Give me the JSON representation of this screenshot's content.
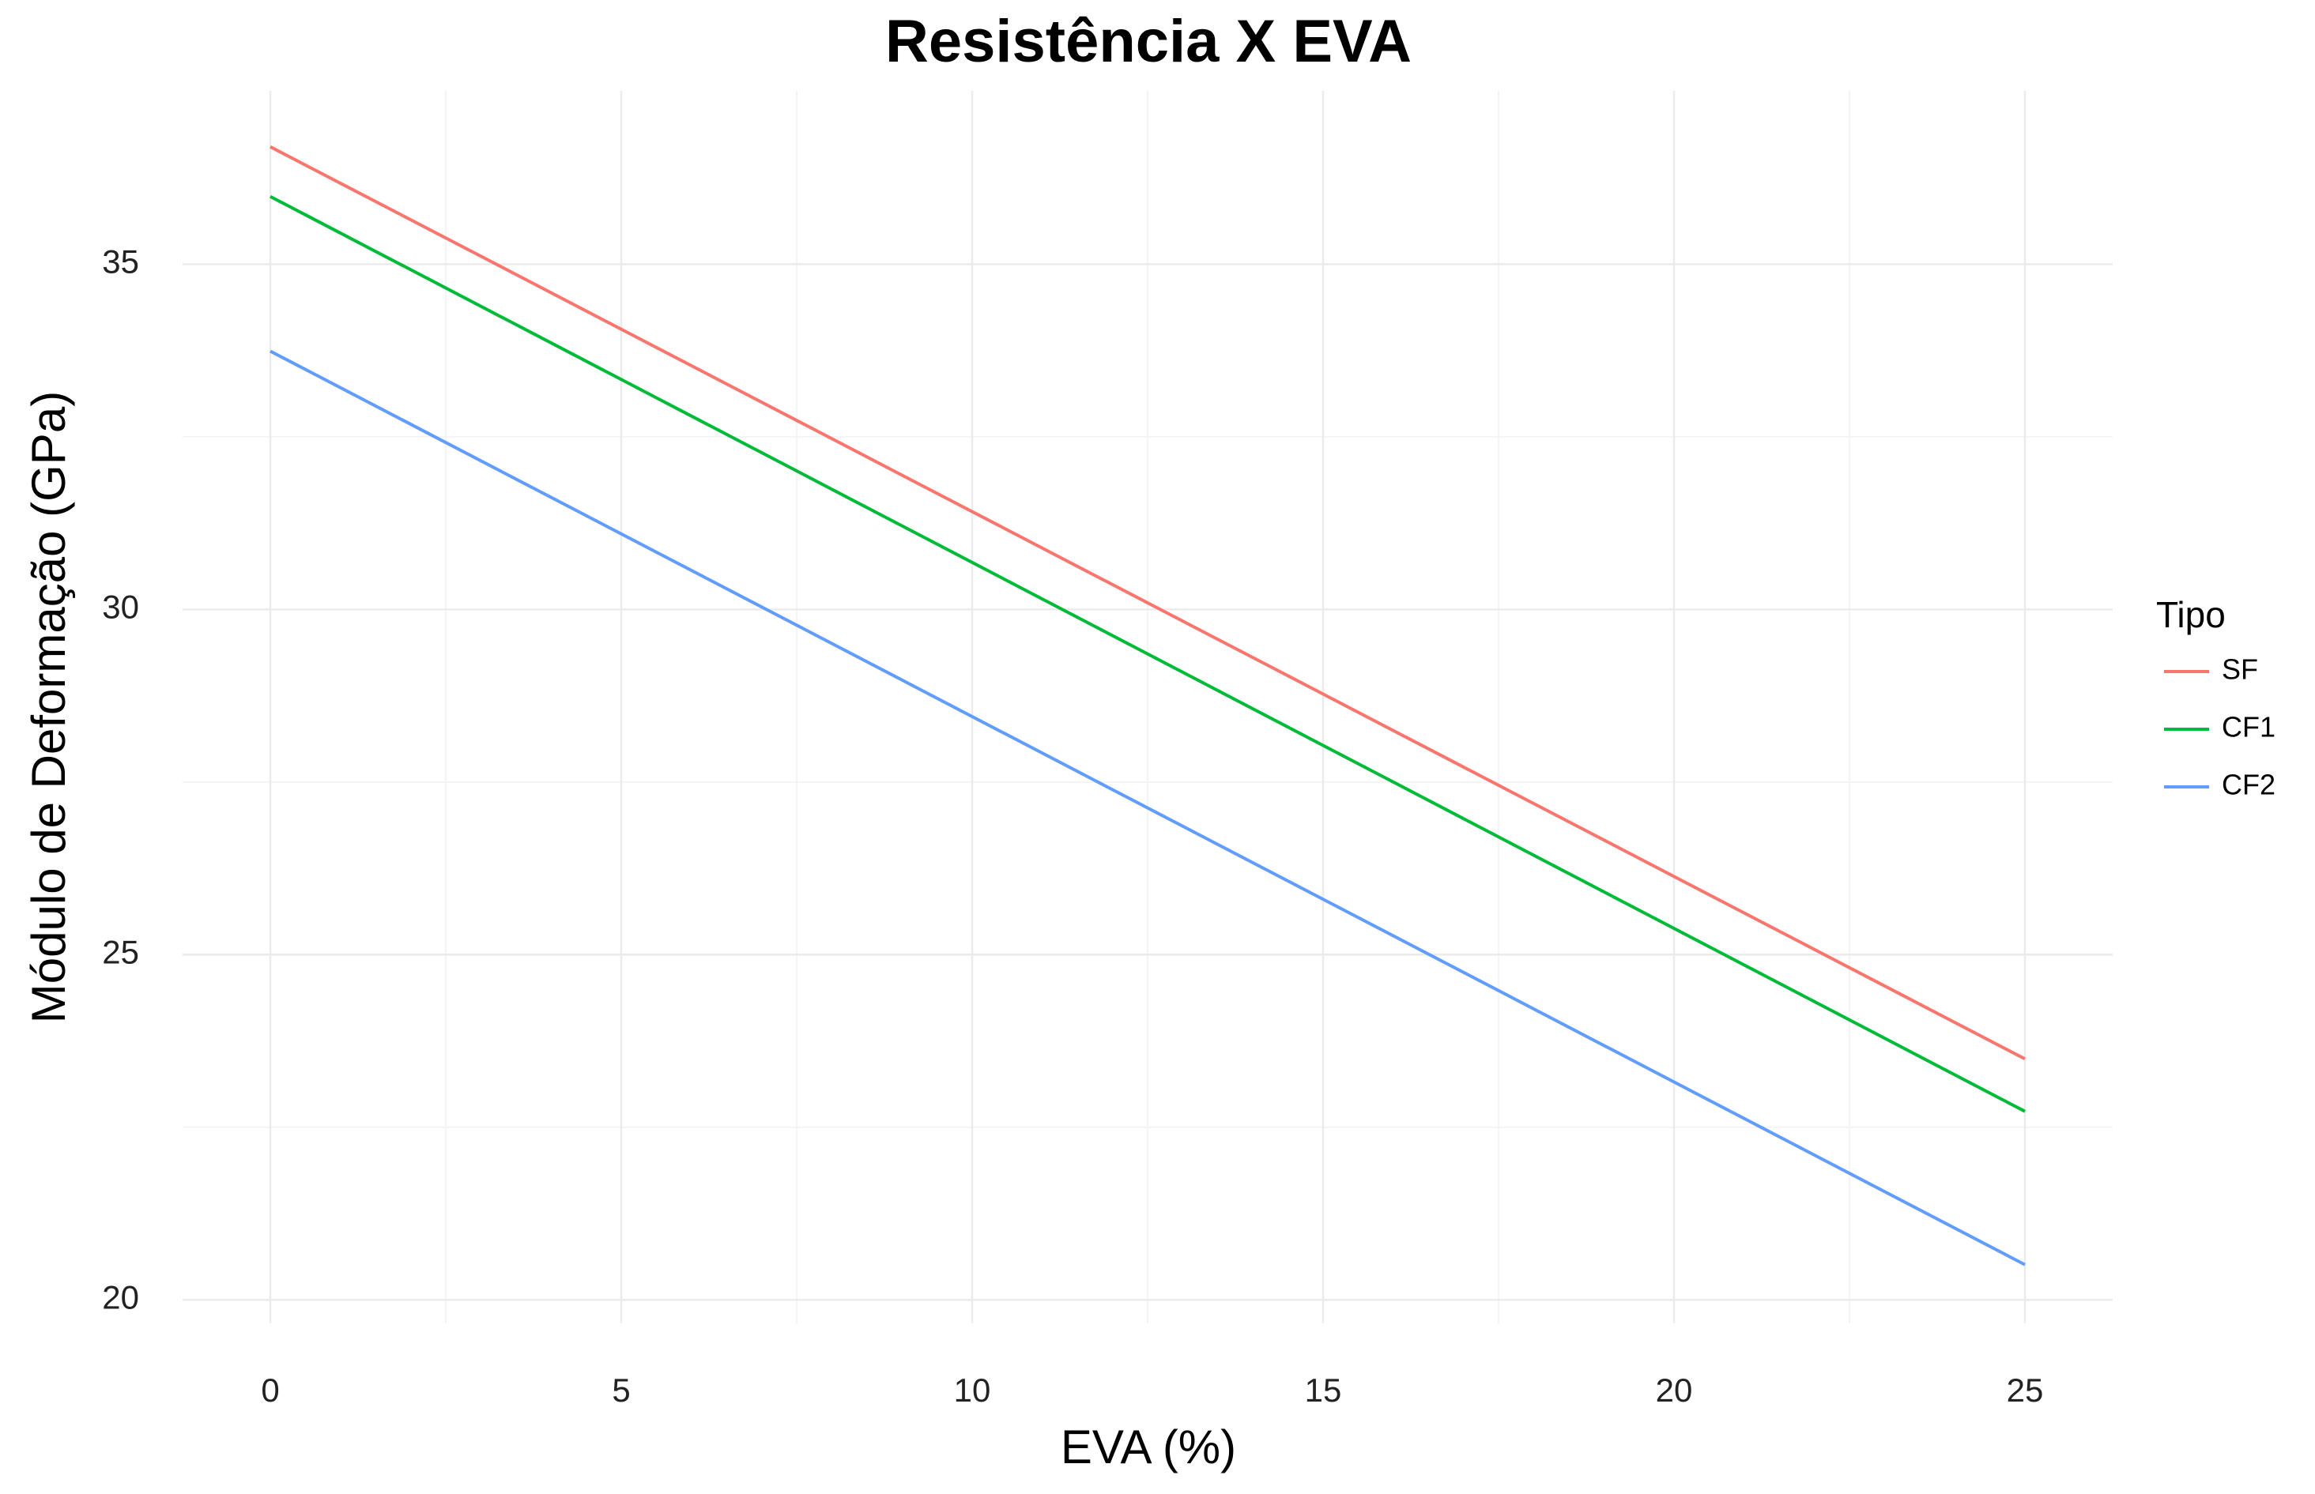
{
  "chart_data": {
    "type": "line",
    "title": "Resistência X EVA",
    "x_label": "EVA (%)",
    "y_label": "Módulo de Deformação (GPa)",
    "legend_title": "Tipo",
    "legend_position": "right",
    "grid": true,
    "x": [
      0,
      25
    ],
    "series": [
      {
        "name": "SF",
        "color": "#F8766D",
        "values": [
          36.7,
          23.49
        ]
      },
      {
        "name": "CF1",
        "color": "#00BA38",
        "values": [
          35.98,
          22.73
        ]
      },
      {
        "name": "CF2",
        "color": "#619CFF",
        "values": [
          33.74,
          20.51
        ]
      }
    ],
    "xlim": [
      -1.25,
      26.25
    ],
    "xticks": [
      0,
      5,
      10,
      15,
      20,
      25
    ],
    "ylim": [
      19.66,
      37.51
    ],
    "yticks": [
      20,
      25,
      30,
      35
    ]
  }
}
